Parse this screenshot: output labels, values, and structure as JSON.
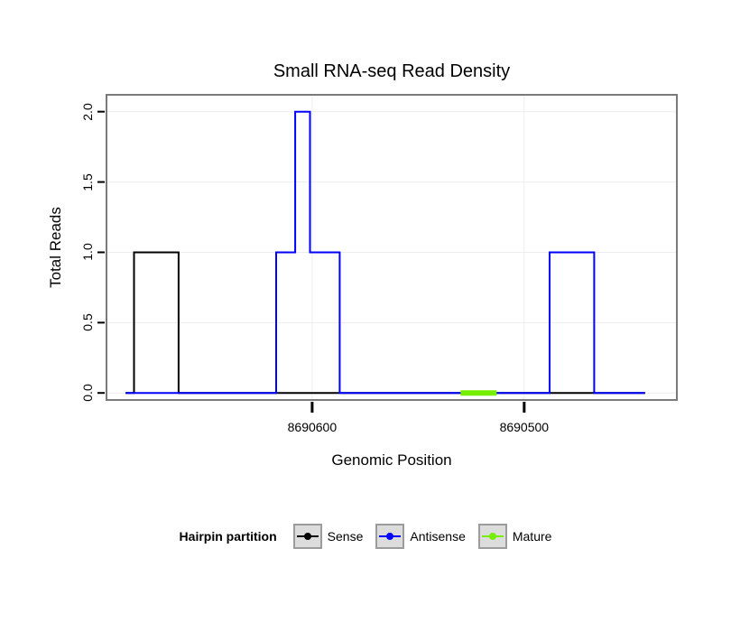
{
  "figure": {
    "title": "Small RNA-seq Read Density",
    "x_axis": {
      "label": "Genomic Position",
      "tick_labels": [
        "8690600",
        "8690500"
      ]
    },
    "y_axis": {
      "label": "Total Reads",
      "tick_labels": [
        "0.0",
        "0.5",
        "1.0",
        "1.5",
        "2.0"
      ]
    },
    "legend": {
      "title": "Hairpin partition",
      "items": [
        "Sense",
        "Antisense",
        "Mature"
      ]
    }
  },
  "chart_data": {
    "type": "line",
    "subtype": "step-read-density",
    "title": "Small RNA-seq Read Density",
    "xlabel": "Genomic Position",
    "ylabel": "Total Reads",
    "x_reversed": true,
    "x_range": [
      8690697,
      8690428
    ],
    "x_ticks": [
      8690600,
      8690500
    ],
    "y_range": [
      -0.05,
      2.12
    ],
    "y_ticks": [
      0.0,
      0.5,
      1.0,
      1.5,
      2.0
    ],
    "grid": "major",
    "panel_border_color": "#7a7a7a",
    "grid_color": "#ededed",
    "legend_position": "bottom",
    "legend_title": "Hairpin partition",
    "series": [
      {
        "name": "Sense",
        "color": "#000000",
        "linewidth": 2,
        "points": [
          [
            8690688,
            0
          ],
          [
            8690684,
            0
          ],
          [
            8690684,
            1
          ],
          [
            8690663,
            1
          ],
          [
            8690663,
            0
          ],
          [
            8690443,
            0
          ]
        ]
      },
      {
        "name": "Antisense",
        "color": "#0000ff",
        "linewidth": 2,
        "points": [
          [
            8690688,
            0
          ],
          [
            8690617,
            0
          ],
          [
            8690617,
            1
          ],
          [
            8690608,
            1
          ],
          [
            8690608,
            2
          ],
          [
            8690601,
            2
          ],
          [
            8690601,
            1
          ],
          [
            8690587,
            1
          ],
          [
            8690587,
            0
          ],
          [
            8690488,
            0
          ],
          [
            8690488,
            1
          ],
          [
            8690467,
            1
          ],
          [
            8690467,
            0
          ],
          [
            8690443,
            0
          ]
        ]
      },
      {
        "name": "Mature",
        "color": "#76ee00",
        "linewidth": 6,
        "points": [
          [
            8690530,
            0
          ],
          [
            8690513,
            0
          ]
        ]
      }
    ]
  }
}
